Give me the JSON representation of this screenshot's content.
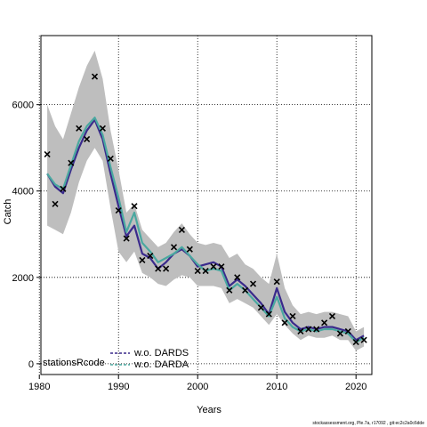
{
  "chart_data": {
    "type": "line",
    "xlabel": "Years",
    "ylabel": "Catch",
    "xlim": [
      1980.2,
      2022
    ],
    "ylim": [
      -250,
      7600
    ],
    "x_ticks": [
      1980,
      1990,
      2000,
      2010,
      2020
    ],
    "y_ticks": [
      0,
      2000,
      4000,
      6000
    ],
    "grid": true,
    "colors": {
      "band": "#bebebe",
      "series_1": "#3a2a8c",
      "series_2": "#4aa8a0",
      "observed": "#000000"
    },
    "band": {
      "x": [
        1981,
        1982,
        1983,
        1984,
        1985,
        1986,
        1987,
        1988,
        1989,
        1990,
        1991,
        1992,
        1993,
        1994,
        1995,
        1996,
        1997,
        1998,
        1999,
        2000,
        2001,
        2002,
        2003,
        2004,
        2005,
        2006,
        2007,
        2008,
        2009,
        2010,
        2011,
        2012,
        2013,
        2014,
        2015,
        2016,
        2017,
        2018,
        2019,
        2020,
        2021
      ],
      "upper": [
        6000,
        5500,
        5200,
        5800,
        6400,
        6900,
        7250,
        6600,
        5400,
        4500,
        3500,
        3700,
        3100,
        2900,
        2700,
        2800,
        3050,
        3250,
        3000,
        2800,
        2750,
        2800,
        2750,
        2450,
        2550,
        2300,
        2200,
        2000,
        1850,
        2550,
        1750,
        1350,
        1150,
        1200,
        1150,
        1200,
        1200,
        1150,
        1100,
        750,
        850
      ],
      "lower": [
        3200,
        3100,
        3000,
        3500,
        4200,
        4700,
        5000,
        4700,
        3600,
        2600,
        2350,
        2600,
        2100,
        2000,
        1850,
        1800,
        1950,
        2050,
        2000,
        1800,
        1800,
        1800,
        1750,
        1400,
        1500,
        1400,
        1300,
        1100,
        900,
        1150,
        900,
        700,
        550,
        650,
        600,
        600,
        650,
        550,
        550,
        300,
        400
      ]
    },
    "series": [
      {
        "name": "w.o. DARDS",
        "x": [
          1981,
          1982,
          1983,
          1984,
          1985,
          1986,
          1987,
          1988,
          1989,
          1990,
          1991,
          1992,
          1993,
          1994,
          1995,
          1996,
          1997,
          1998,
          1999,
          2000,
          2001,
          2002,
          2003,
          2004,
          2005,
          2006,
          2007,
          2008,
          2009,
          2010,
          2011,
          2012,
          2013,
          2014,
          2015,
          2016,
          2017,
          2018,
          2019,
          2020,
          2021
        ],
        "values": [
          4400,
          4100,
          3950,
          4500,
          5000,
          5400,
          5650,
          5200,
          4400,
          3650,
          2950,
          3200,
          2550,
          2450,
          2200,
          2350,
          2550,
          2650,
          2500,
          2250,
          2300,
          2350,
          2250,
          1800,
          1950,
          1800,
          1600,
          1400,
          1150,
          1750,
          1200,
          950,
          800,
          850,
          800,
          850,
          850,
          800,
          750,
          550,
          650
        ]
      },
      {
        "name": "w.o. DARDA",
        "x": [
          1981,
          1982,
          1983,
          1984,
          1985,
          1986,
          1987,
          1988,
          1989,
          1990,
          1991,
          1992,
          1993,
          1994,
          1995,
          1996,
          1997,
          1998,
          1999,
          2000,
          2001,
          2002,
          2003,
          2004,
          2005,
          2006,
          2007,
          2008,
          2009,
          2010,
          2011,
          2012,
          2013,
          2014,
          2015,
          2016,
          2017,
          2018,
          2019,
          2020,
          2021
        ],
        "values": [
          4400,
          4150,
          4050,
          4600,
          5150,
          5500,
          5700,
          5300,
          4550,
          3850,
          3050,
          3500,
          2800,
          2600,
          2350,
          2450,
          2550,
          2700,
          2500,
          2300,
          2150,
          2200,
          2150,
          1700,
          1850,
          1700,
          1500,
          1300,
          1100,
          1550,
          1050,
          850,
          750,
          800,
          750,
          800,
          800,
          750,
          700,
          500,
          600
        ]
      }
    ],
    "observed": {
      "x": [
        1981,
        1982,
        1983,
        1984,
        1985,
        1986,
        1987,
        1988,
        1989,
        1990,
        1991,
        1992,
        1993,
        1994,
        1995,
        1996,
        1997,
        1998,
        1999,
        2000,
        2001,
        2002,
        2003,
        2004,
        2005,
        2006,
        2007,
        2008,
        2009,
        2010,
        2011,
        2012,
        2013,
        2014,
        2015,
        2016,
        2017,
        2018,
        2019,
        2020,
        2021
      ],
      "values": [
        4850,
        3700,
        4050,
        4650,
        5450,
        5200,
        6650,
        5450,
        4750,
        3550,
        2900,
        3650,
        2400,
        2500,
        2200,
        2200,
        2700,
        3100,
        2650,
        2150,
        2150,
        2250,
        2250,
        1700,
        2000,
        1700,
        1850,
        1300,
        1150,
        1900,
        950,
        1100,
        750,
        800,
        800,
        950,
        1100,
        700,
        750,
        500,
        550
      ]
    },
    "legend": {
      "placement": "bottom-left",
      "title": "stationsRcode",
      "entries": [
        "w.o. DARDS",
        "w.o. DARDA"
      ]
    }
  },
  "footer": "stockassessment.org, Ple.7a, r17092 , git:ec2c2a0c6dde"
}
